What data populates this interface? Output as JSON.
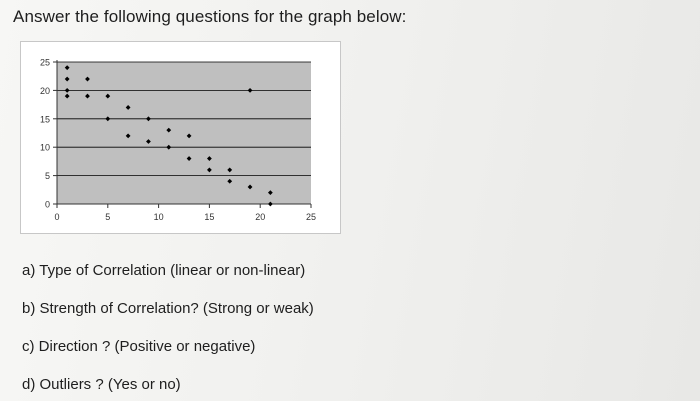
{
  "heading": "Answer the following questions for the graph below:",
  "questions": [
    "a) Type of Correlation (linear or non-linear)",
    "b) Strength of Correlation?  (Strong or weak)",
    "c) Direction ? (Positive or negative)",
    "d) Outliers ? (Yes or no)"
  ],
  "chart_data": {
    "type": "scatter",
    "title": "",
    "xlabel": "",
    "ylabel": "",
    "xlim": [
      0,
      25
    ],
    "ylim": [
      0,
      25
    ],
    "x_ticks": [
      0,
      5,
      10,
      15,
      20,
      25
    ],
    "y_ticks": [
      0,
      5,
      10,
      15,
      20,
      25
    ],
    "grid": true,
    "plot_background": "#bfbfbf",
    "marker_color": "#000000",
    "points": [
      {
        "x": 1,
        "y": 24
      },
      {
        "x": 1,
        "y": 22
      },
      {
        "x": 1,
        "y": 20
      },
      {
        "x": 1,
        "y": 19
      },
      {
        "x": 3,
        "y": 22
      },
      {
        "x": 3,
        "y": 19
      },
      {
        "x": 5,
        "y": 19
      },
      {
        "x": 5,
        "y": 15
      },
      {
        "x": 7,
        "y": 17
      },
      {
        "x": 7,
        "y": 12
      },
      {
        "x": 9,
        "y": 15
      },
      {
        "x": 9,
        "y": 11
      },
      {
        "x": 11,
        "y": 13
      },
      {
        "x": 11,
        "y": 10
      },
      {
        "x": 13,
        "y": 12
      },
      {
        "x": 13,
        "y": 8
      },
      {
        "x": 15,
        "y": 8
      },
      {
        "x": 15,
        "y": 6
      },
      {
        "x": 17,
        "y": 6
      },
      {
        "x": 17,
        "y": 4
      },
      {
        "x": 19,
        "y": 20
      },
      {
        "x": 19,
        "y": 3
      },
      {
        "x": 21,
        "y": 2
      },
      {
        "x": 21,
        "y": 0
      }
    ]
  }
}
